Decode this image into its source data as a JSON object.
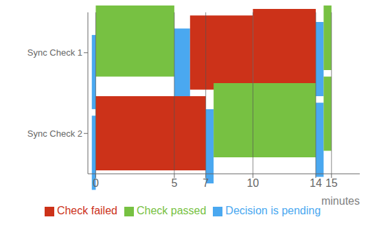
{
  "chart_data": {
    "type": "bar",
    "orientation": "horizontal",
    "categories": [
      "Sync Check 1",
      "Sync Check 2"
    ],
    "series": [
      {
        "name": "Decision is pending",
        "color": "#4aa8f0",
        "values": [
          [
            [
              -0.25,
              0
            ],
            [
              5,
              6
            ],
            [
              14,
              14.5
            ]
          ],
          [
            [
              -0.25,
              0
            ],
            [
              7,
              7.5
            ],
            [
              14,
              14.5
            ]
          ]
        ]
      },
      {
        "name": "Check failed",
        "color": "#cc3219",
        "values": [
          [
            [
              6,
              10
            ],
            [
              10,
              14
            ]
          ],
          [
            [
              0,
              7
            ]
          ]
        ]
      },
      {
        "name": "Check passed",
        "color": "#77c142",
        "values": [
          [
            [
              0,
              5
            ],
            [
              14.5,
              15
            ]
          ],
          [
            [
              7.5,
              14
            ],
            [
              14.5,
              15
            ]
          ]
        ]
      }
    ],
    "xlabel": "minutes",
    "xlim": [
      -0.5,
      16.8
    ],
    "xticks": [
      0,
      5,
      7,
      10,
      14,
      15
    ],
    "grid": true
  }
}
